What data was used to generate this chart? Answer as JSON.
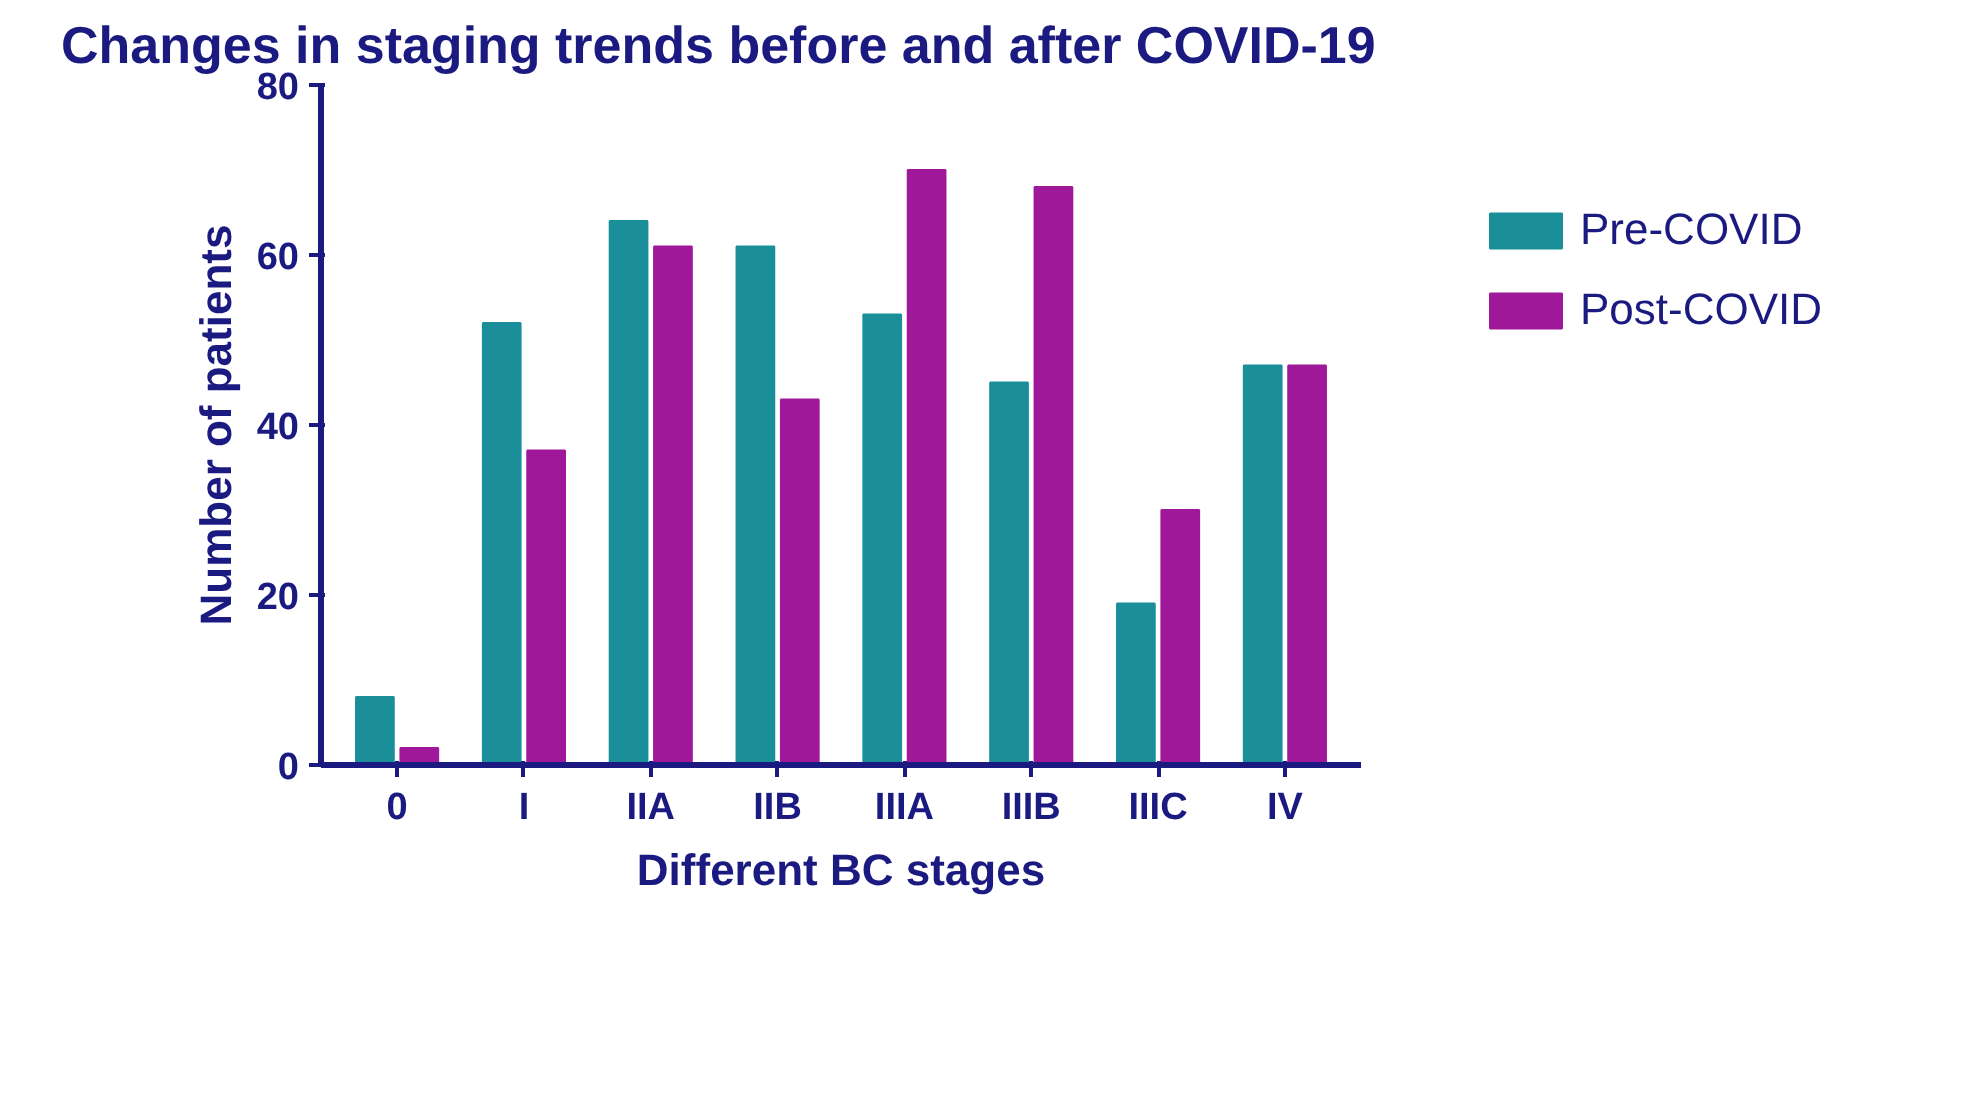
{
  "chart_data": {
    "type": "bar",
    "title": "Changes in staging trends before and after COVID-19",
    "xlabel": "Different BC stages",
    "ylabel": "Number of patients",
    "categories": [
      "0",
      "I",
      "IIA",
      "IIB",
      "IIIA",
      "IIIB",
      "IIIC",
      "IV"
    ],
    "series": [
      {
        "name": "Pre-COVID",
        "color": "#1a8f9a",
        "values": [
          8,
          52,
          64,
          61,
          53,
          45,
          19,
          47
        ]
      },
      {
        "name": "Post-COVID",
        "color": "#a0189a",
        "values": [
          2,
          37,
          61,
          43,
          70,
          68,
          30,
          47
        ]
      }
    ],
    "ylim": [
      0,
      80
    ],
    "yticks": [
      0,
      20,
      40,
      60,
      80
    ],
    "grid": false,
    "legend": "top right"
  }
}
